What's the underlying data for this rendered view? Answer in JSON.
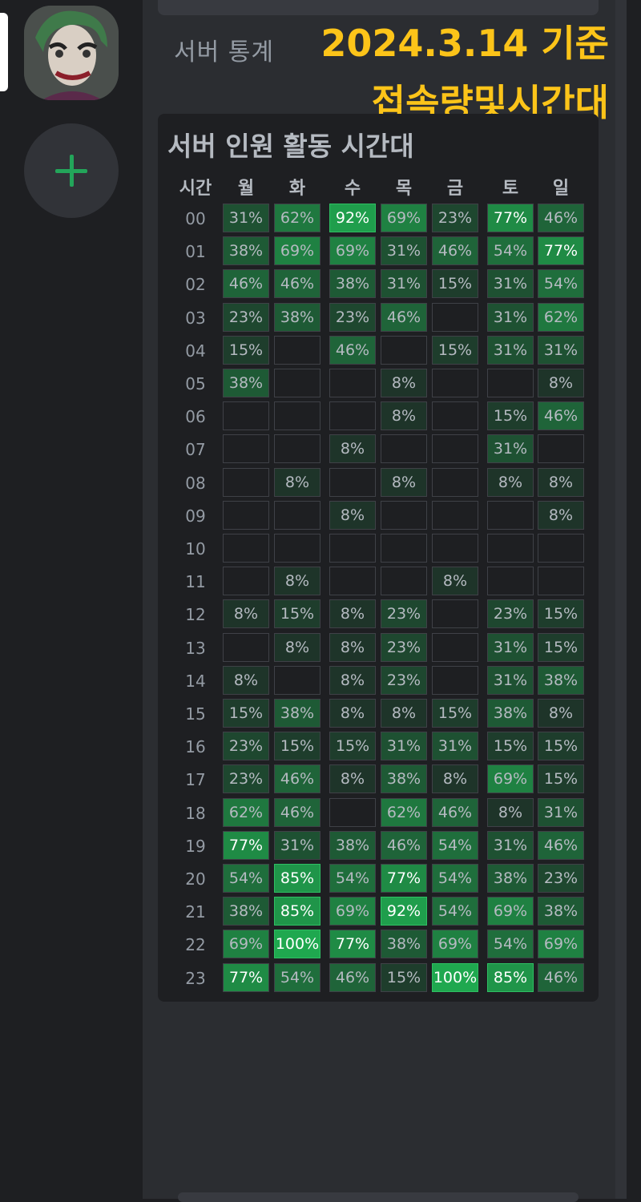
{
  "server_rail": {
    "avatar_icon": "joker-avatar-icon",
    "add_server_icon": "plus-icon",
    "add_color": "#23a55a"
  },
  "section_title": "서버 통계",
  "overlay": {
    "line1": "2024.3.14 기준",
    "line2": "접속량및시간대",
    "color": "#fcc419"
  },
  "card": {
    "title": "서버 인원 활동 시간대"
  },
  "heatmap": {
    "time_header": "시간",
    "days": [
      "월",
      "화",
      "수",
      "목",
      "금",
      "토",
      "일"
    ],
    "hours": [
      "00",
      "01",
      "02",
      "03",
      "04",
      "05",
      "06",
      "07",
      "08",
      "09",
      "10",
      "11",
      "12",
      "13",
      "14",
      "15",
      "16",
      "17",
      "18",
      "19",
      "20",
      "21",
      "22",
      "23"
    ],
    "values": [
      [
        31,
        62,
        92,
        69,
        23,
        77,
        46
      ],
      [
        38,
        69,
        69,
        31,
        46,
        54,
        77
      ],
      [
        46,
        46,
        38,
        31,
        15,
        31,
        54
      ],
      [
        23,
        38,
        23,
        46,
        null,
        31,
        62
      ],
      [
        15,
        null,
        46,
        null,
        15,
        31,
        31
      ],
      [
        38,
        null,
        null,
        8,
        null,
        null,
        8
      ],
      [
        null,
        null,
        null,
        8,
        null,
        15,
        46
      ],
      [
        null,
        null,
        8,
        null,
        null,
        31,
        null
      ],
      [
        null,
        8,
        null,
        8,
        null,
        8,
        8
      ],
      [
        null,
        null,
        8,
        null,
        null,
        null,
        8
      ],
      [
        null,
        null,
        null,
        null,
        null,
        null,
        null
      ],
      [
        null,
        8,
        null,
        null,
        8,
        null,
        null
      ],
      [
        8,
        15,
        8,
        23,
        null,
        23,
        15
      ],
      [
        null,
        8,
        8,
        23,
        null,
        31,
        15
      ],
      [
        8,
        null,
        8,
        23,
        null,
        31,
        38
      ],
      [
        15,
        38,
        8,
        8,
        15,
        38,
        8
      ],
      [
        23,
        15,
        15,
        31,
        31,
        15,
        15
      ],
      [
        23,
        46,
        8,
        38,
        8,
        69,
        15
      ],
      [
        62,
        46,
        null,
        62,
        46,
        8,
        31
      ],
      [
        77,
        31,
        38,
        46,
        54,
        31,
        46
      ],
      [
        54,
        85,
        54,
        77,
        54,
        38,
        23
      ],
      [
        38,
        85,
        69,
        92,
        54,
        69,
        38
      ],
      [
        69,
        100,
        77,
        38,
        69,
        54,
        69
      ],
      [
        77,
        54,
        46,
        15,
        100,
        85,
        46
      ]
    ],
    "unit": "%",
    "color_low": "#1e1f22",
    "color_high": "#1fa84f"
  }
}
